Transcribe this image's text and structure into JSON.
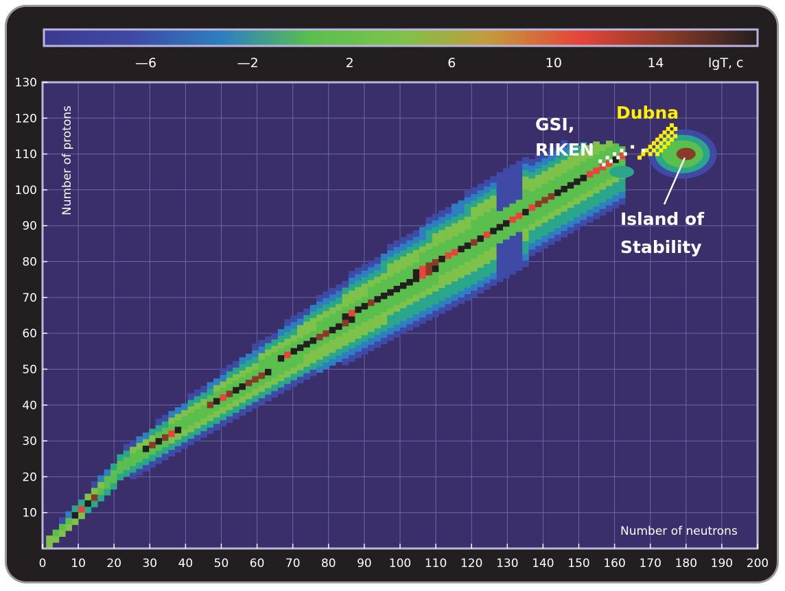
{
  "chart_data": {
    "type": "heatmap",
    "xlabel": "Number of neutrons",
    "ylabel": "Number of protons",
    "xlim": [
      0,
      200
    ],
    "ylim": [
      0,
      130
    ],
    "x_ticks": [
      "0",
      "10",
      "20",
      "30",
      "40",
      "50",
      "60",
      "70",
      "80",
      "90",
      "100",
      "110",
      "120",
      "130",
      "140",
      "150",
      "160",
      "170",
      "180",
      "190",
      "200"
    ],
    "y_ticks": [
      "10",
      "20",
      "30",
      "40",
      "50",
      "60",
      "70",
      "80",
      "90",
      "100",
      "110",
      "120",
      "130"
    ],
    "colorbar": {
      "label": "lgT, c",
      "range": [
        -10,
        18
      ],
      "ticks": [
        "—6",
        "—2",
        "2",
        "6",
        "10",
        "14"
      ],
      "tick_values": [
        -6,
        -2,
        2,
        6,
        10,
        14
      ],
      "stops": [
        "#3c3a8e",
        "#3e4aa6",
        "#2d7fc1",
        "#5bbf4e",
        "#7ec24a",
        "#c49a3c",
        "#e6453a",
        "#8a3a28",
        "#231f20"
      ]
    },
    "background_color": "#3a2f6b",
    "grid": true,
    "annotations": [
      {
        "text": "Dubna",
        "color": "#ffef00",
        "x": 172,
        "y": 116
      },
      {
        "text": "GSI,",
        "color": "#ffffff",
        "x": 148,
        "y": 118
      },
      {
        "text": "RIKEN",
        "color": "#ffffff",
        "x": 148,
        "y": 112
      },
      {
        "text": "Island of",
        "color": "#ffffff",
        "x": 184,
        "y": 92
      },
      {
        "text": "Stability",
        "color": "#ffffff",
        "x": 184,
        "y": 84
      }
    ],
    "island_of_stability": {
      "neutrons": 180,
      "protons": 110
    },
    "dubna_points": [
      [
        176,
        118
      ],
      [
        175,
        117
      ],
      [
        177,
        117
      ],
      [
        174,
        116
      ],
      [
        176,
        116
      ],
      [
        173,
        115
      ],
      [
        175,
        115
      ],
      [
        177,
        115
      ],
      [
        172,
        114
      ],
      [
        174,
        114
      ],
      [
        176,
        114
      ],
      [
        171,
        113
      ],
      [
        173,
        113
      ],
      [
        175,
        113
      ],
      [
        170,
        112
      ],
      [
        172,
        112
      ],
      [
        174,
        112
      ],
      [
        169,
        111
      ],
      [
        171,
        111
      ],
      [
        173,
        111
      ],
      [
        168,
        110
      ],
      [
        170,
        110
      ],
      [
        172,
        110
      ],
      [
        167,
        109
      ]
    ],
    "gsi_riken_points": [
      [
        162,
        111
      ],
      [
        163,
        110
      ],
      [
        160,
        110
      ],
      [
        161,
        109
      ],
      [
        158,
        109
      ],
      [
        159,
        108
      ],
      [
        156,
        108
      ],
      [
        157,
        107
      ],
      [
        165,
        112
      ],
      [
        168,
        111
      ]
    ]
  }
}
